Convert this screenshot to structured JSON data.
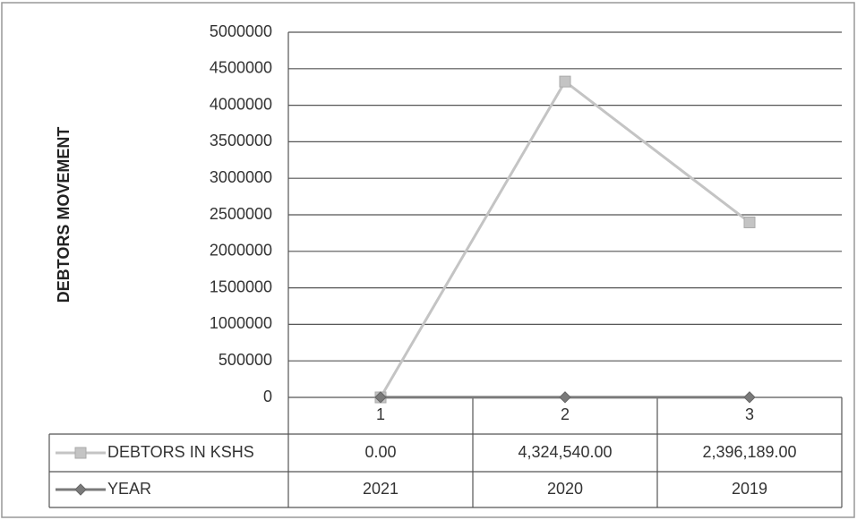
{
  "chart_data": {
    "type": "line",
    "y_label": "DEBTORS MOVEMENT",
    "categories": [
      "1",
      "2",
      "3"
    ],
    "series": [
      {
        "name": "DEBTORS  IN KSHS",
        "color": "#c4c4c4",
        "marker": "square",
        "values": [
          0,
          4324540,
          2396189
        ],
        "value_labels": [
          "0.00",
          "4,324,540.00",
          "2,396,189.00"
        ]
      },
      {
        "name": "YEAR",
        "color": "#7a7a7a",
        "marker": "diamond",
        "values": [
          2021,
          2020,
          2019
        ]
      }
    ],
    "ylim": [
      0,
      5000000
    ],
    "yticks": [
      0,
      500000,
      1000000,
      1500000,
      2000000,
      2500000,
      3000000,
      3500000,
      4000000,
      4500000,
      5000000
    ],
    "grid": true
  }
}
